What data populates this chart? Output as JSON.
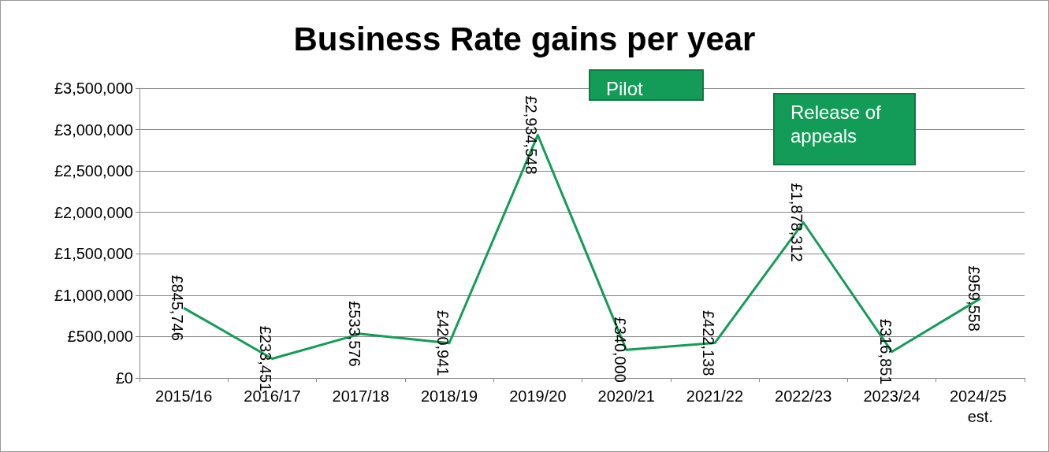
{
  "chart_data": {
    "type": "line",
    "title": "Business Rate gains per year",
    "categories": [
      "2015/16",
      "2016/17",
      "2017/18",
      "2018/19",
      "2019/20",
      "2020/21",
      "2021/22",
      "2022/23",
      "2023/24",
      "2024/25 est."
    ],
    "series": [
      {
        "color": "#139c57",
        "values": [
          845746,
          233451,
          533576,
          420941,
          2934548,
          340000,
          422138,
          1878312,
          316851,
          959558
        ],
        "value_labels": [
          "£845,746",
          "£233,451",
          "£533,576",
          "£420,941",
          "£2,934,548",
          "£340,000",
          "£422,138",
          "£1,878,312",
          "£316,851",
          "£959,558"
        ]
      }
    ],
    "ylim": [
      0,
      3500000
    ],
    "yticks": [
      {
        "value": 0,
        "label": "£0"
      },
      {
        "value": 500000,
        "label": "£500,000"
      },
      {
        "value": 1000000,
        "label": "£1,000,000"
      },
      {
        "value": 1500000,
        "label": "£1,500,000"
      },
      {
        "value": 2000000,
        "label": "£2,000,000"
      },
      {
        "value": 2500000,
        "label": "£2,500,000"
      },
      {
        "value": 3000000,
        "label": "£3,000,000"
      },
      {
        "value": 3500000,
        "label": "£3,500,000"
      }
    ],
    "annotations": [
      "Pilot",
      "Release of appeals"
    ],
    "grid": "y",
    "marker": "none",
    "line_style": "solid"
  }
}
